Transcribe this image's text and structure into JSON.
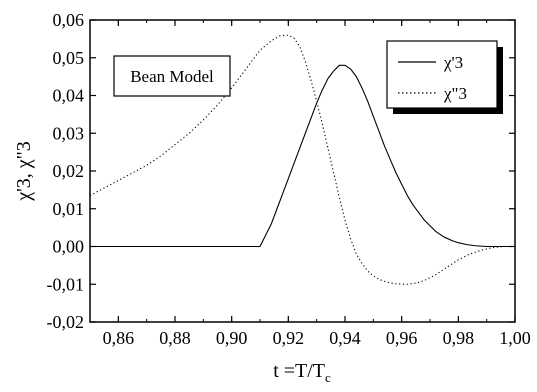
{
  "chart_data": {
    "type": "line",
    "title": "",
    "xlabel": "t =T/T",
    "xlabel_sub": "c",
    "ylabel": "χ'3, χ\"3",
    "xlim": [
      0.85,
      1.0
    ],
    "ylim": [
      -0.02,
      0.06
    ],
    "x_ticks": [
      0.86,
      0.88,
      0.9,
      0.92,
      0.94,
      0.96,
      0.98,
      1.0
    ],
    "x_tick_labels": [
      "0,86",
      "0,88",
      "0,90",
      "0,92",
      "0,94",
      "0,96",
      "0,98",
      "1,00"
    ],
    "y_ticks": [
      -0.02,
      -0.01,
      0.0,
      0.01,
      0.02,
      0.03,
      0.04,
      0.05,
      0.06
    ],
    "y_tick_labels": [
      "-0,02",
      "-0,01",
      "0,00",
      "0,01",
      "0,02",
      "0,03",
      "0,04",
      "0,05",
      "0,06"
    ],
    "grid": false,
    "legend_position": "top-right",
    "annotation": "Bean Model",
    "series": [
      {
        "name": "χ'3",
        "style": "solid",
        "color": "#000000",
        "points": [
          [
            0.85,
            0.0
          ],
          [
            0.88,
            0.0
          ],
          [
            0.9,
            0.0
          ],
          [
            0.908,
            0.0
          ],
          [
            0.91,
            0.0
          ],
          [
            0.912,
            0.003
          ],
          [
            0.914,
            0.006
          ],
          [
            0.916,
            0.01
          ],
          [
            0.918,
            0.014
          ],
          [
            0.92,
            0.018
          ],
          [
            0.922,
            0.022
          ],
          [
            0.924,
            0.026
          ],
          [
            0.926,
            0.03
          ],
          [
            0.928,
            0.034
          ],
          [
            0.93,
            0.038
          ],
          [
            0.932,
            0.0415
          ],
          [
            0.934,
            0.0445
          ],
          [
            0.936,
            0.0465
          ],
          [
            0.938,
            0.048
          ],
          [
            0.94,
            0.048
          ],
          [
            0.942,
            0.047
          ],
          [
            0.944,
            0.045
          ],
          [
            0.946,
            0.042
          ],
          [
            0.948,
            0.0385
          ],
          [
            0.95,
            0.0345
          ],
          [
            0.952,
            0.0305
          ],
          [
            0.954,
            0.0265
          ],
          [
            0.956,
            0.023
          ],
          [
            0.958,
            0.0195
          ],
          [
            0.96,
            0.0165
          ],
          [
            0.962,
            0.0135
          ],
          [
            0.964,
            0.011
          ],
          [
            0.966,
            0.009
          ],
          [
            0.968,
            0.007
          ],
          [
            0.97,
            0.0055
          ],
          [
            0.972,
            0.004
          ],
          [
            0.975,
            0.0025
          ],
          [
            0.978,
            0.0015
          ],
          [
            0.98,
            0.001
          ],
          [
            0.983,
            0.0005
          ],
          [
            0.986,
            0.0002
          ],
          [
            0.99,
            0.0
          ],
          [
            1.0,
            0.0
          ]
        ]
      },
      {
        "name": "χ\"3",
        "style": "dotted",
        "color": "#000000",
        "points": [
          [
            0.85,
            0.0135
          ],
          [
            0.855,
            0.0155
          ],
          [
            0.86,
            0.0175
          ],
          [
            0.865,
            0.0195
          ],
          [
            0.87,
            0.0215
          ],
          [
            0.875,
            0.024
          ],
          [
            0.88,
            0.027
          ],
          [
            0.885,
            0.03
          ],
          [
            0.89,
            0.0335
          ],
          [
            0.895,
            0.0375
          ],
          [
            0.9,
            0.042
          ],
          [
            0.905,
            0.047
          ],
          [
            0.91,
            0.052
          ],
          [
            0.914,
            0.0545
          ],
          [
            0.917,
            0.0558
          ],
          [
            0.92,
            0.056
          ],
          [
            0.922,
            0.0552
          ],
          [
            0.924,
            0.053
          ],
          [
            0.926,
            0.049
          ],
          [
            0.928,
            0.044
          ],
          [
            0.93,
            0.0385
          ],
          [
            0.932,
            0.0325
          ],
          [
            0.934,
            0.026
          ],
          [
            0.936,
            0.0195
          ],
          [
            0.938,
            0.013
          ],
          [
            0.94,
            0.007
          ],
          [
            0.942,
            0.002
          ],
          [
            0.944,
            -0.002
          ],
          [
            0.946,
            -0.0045
          ],
          [
            0.948,
            -0.0065
          ],
          [
            0.95,
            -0.0078
          ],
          [
            0.952,
            -0.0087
          ],
          [
            0.955,
            -0.0095
          ],
          [
            0.958,
            -0.0099
          ],
          [
            0.962,
            -0.01
          ],
          [
            0.965,
            -0.0097
          ],
          [
            0.968,
            -0.009
          ],
          [
            0.972,
            -0.0075
          ],
          [
            0.976,
            -0.0055
          ],
          [
            0.98,
            -0.0035
          ],
          [
            0.984,
            -0.002
          ],
          [
            0.988,
            -0.001
          ],
          [
            0.992,
            -0.0003
          ],
          [
            0.996,
            0.0
          ],
          [
            1.0,
            0.0
          ]
        ]
      }
    ]
  }
}
